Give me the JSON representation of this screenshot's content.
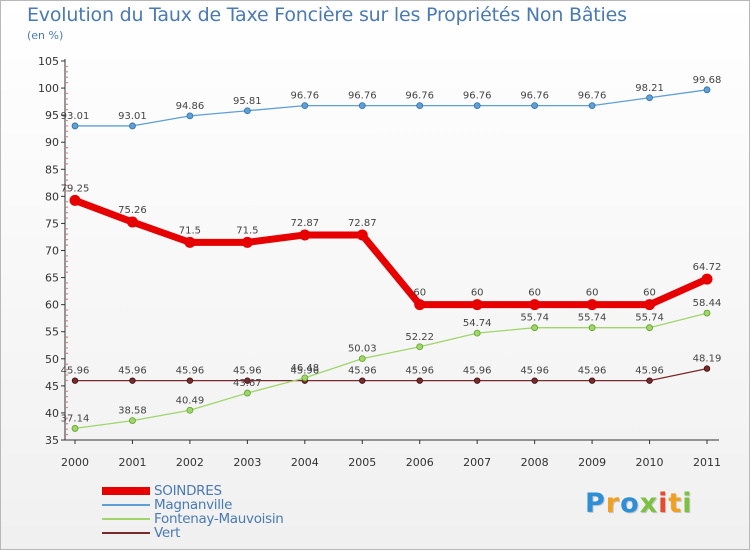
{
  "title": "Evolution du Taux de Taxe Foncière sur les Propriétés Non Bâties",
  "unit": "(en %)",
  "logo": {
    "letters": [
      "P",
      "r",
      "o",
      "x",
      "i",
      "t",
      "i"
    ],
    "colors": [
      "#2e8fd6",
      "#f0a020",
      "#2e8fd6",
      "#7cc142",
      "#e84a2e",
      "#f0a020",
      "#7cc142"
    ]
  },
  "chart_data": {
    "type": "line",
    "title": "Evolution du Taux de Taxe Foncière sur les Propriétés Non Bâties",
    "ylabel": "(en %)",
    "xlabel": "",
    "x": [
      "2000",
      "2001",
      "2002",
      "2003",
      "2004",
      "2005",
      "2006",
      "2007",
      "2008",
      "2009",
      "2010",
      "2011"
    ],
    "ylim": [
      35,
      105
    ],
    "yticks": [
      35,
      40,
      45,
      50,
      55,
      60,
      65,
      70,
      75,
      80,
      85,
      90,
      95,
      100,
      105
    ],
    "grid": false,
    "legend_position": "bottom-left",
    "series": [
      {
        "name": "SOINDRES",
        "color": "#e60000",
        "values": [
          79.25,
          75.26,
          71.5,
          71.5,
          72.87,
          72.87,
          60,
          60,
          60,
          60,
          60,
          64.72
        ],
        "labels": [
          "79.25",
          "75.26",
          "71.5",
          "71.5",
          "72.87",
          "72.87",
          "60",
          "60",
          "60",
          "60",
          "60",
          "64.72"
        ]
      },
      {
        "name": "Magnanville",
        "color": "#5f9fd6",
        "values": [
          93.01,
          93.01,
          94.86,
          95.81,
          96.76,
          96.76,
          96.76,
          96.76,
          96.76,
          96.76,
          98.21,
          99.68
        ],
        "labels": [
          "93.01",
          "93.01",
          "94.86",
          "95.81",
          "96.76",
          "96.76",
          "96.76",
          "96.76",
          "96.76",
          "96.76",
          "98.21",
          "99.68"
        ]
      },
      {
        "name": "Fontenay-Mauvoisin",
        "color": "#9fd66a",
        "values": [
          37.14,
          38.58,
          40.49,
          43.67,
          46.48,
          50.03,
          52.22,
          54.74,
          55.74,
          55.74,
          55.74,
          58.44
        ],
        "labels": [
          "37.14",
          "38.58",
          "40.49",
          "43.67",
          "46.48",
          "50.03",
          "52.22",
          "54.74",
          "55.74",
          "55.74",
          "55.74",
          "58.44"
        ]
      },
      {
        "name": "Vert",
        "color": "#7a2a2a",
        "values": [
          45.96,
          45.96,
          45.96,
          45.96,
          45.96,
          45.96,
          45.96,
          45.96,
          45.96,
          45.96,
          45.96,
          48.19
        ],
        "labels": [
          "45.96",
          "45.96",
          "45.96",
          "45.96",
          "45.96",
          "45.96",
          "45.96",
          "45.96",
          "45.96",
          "45.96",
          "45.96",
          "48.19"
        ]
      }
    ]
  }
}
